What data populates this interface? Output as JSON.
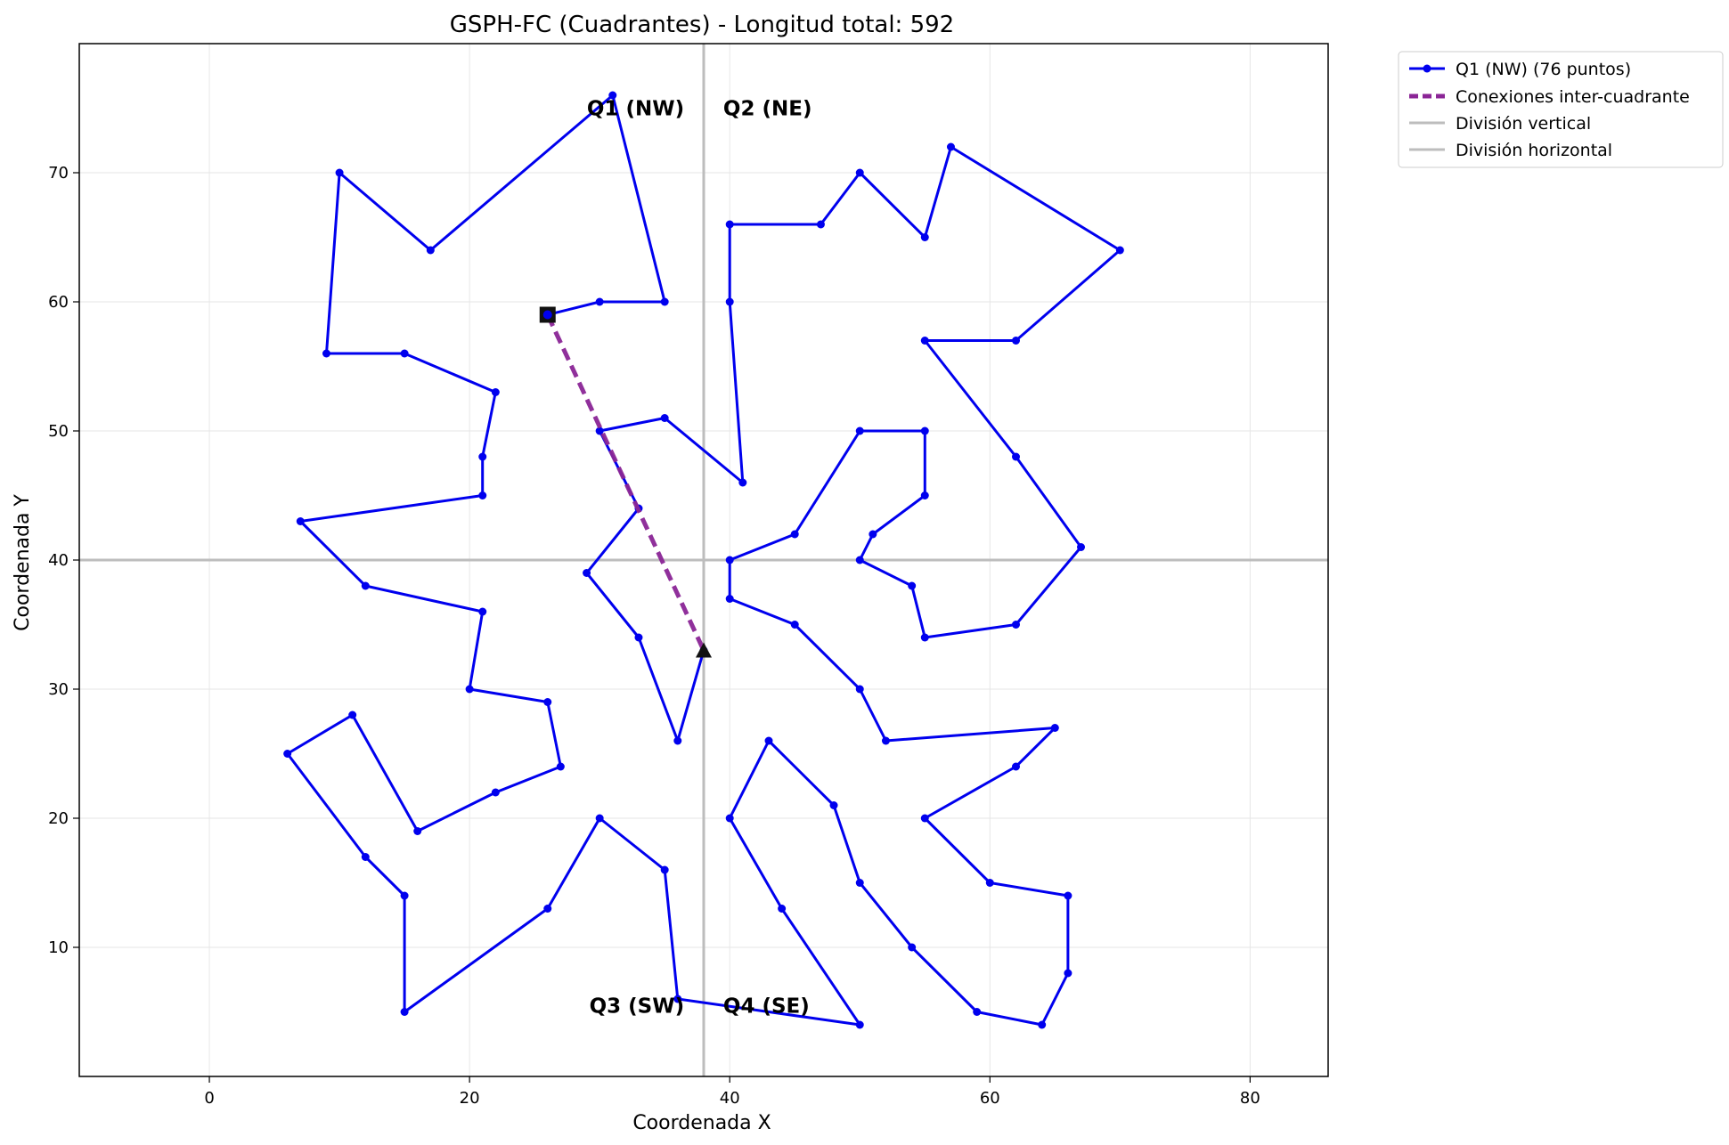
{
  "chart_data": {
    "type": "line",
    "title": "GSPH-FC (Cuadrantes) - Longitud total: 592",
    "xlabel": "Coordenada X",
    "ylabel": "Coordenada Y",
    "xlim": [
      -10,
      86
    ],
    "ylim": [
      0,
      80
    ],
    "xticks": [
      0,
      20,
      40,
      60,
      80
    ],
    "yticks": [
      10,
      20,
      30,
      40,
      50,
      60,
      70
    ],
    "grid": true,
    "legend_position": "outside-top-right",
    "colors": {
      "tour": "#0000ee",
      "connection": "#8b2596",
      "divider": "#bdbdbd"
    },
    "series": [
      {
        "name": "Q1 (NW) (76 puntos)",
        "points": [
          [
            26,
            59
          ],
          [
            30,
            60
          ],
          [
            35,
            60
          ],
          [
            31,
            76
          ],
          [
            17,
            64
          ],
          [
            10,
            70
          ],
          [
            9,
            56
          ],
          [
            15,
            56
          ],
          [
            22,
            53
          ],
          [
            21,
            48
          ],
          [
            21,
            45
          ],
          [
            7,
            43
          ],
          [
            12,
            38
          ],
          [
            21,
            36
          ],
          [
            20,
            30
          ],
          [
            26,
            29
          ],
          [
            27,
            24
          ],
          [
            22,
            22
          ],
          [
            16,
            19
          ],
          [
            11,
            28
          ],
          [
            6,
            25
          ],
          [
            12,
            17
          ],
          [
            15,
            14
          ],
          [
            15,
            5
          ],
          [
            26,
            13
          ],
          [
            30,
            20
          ],
          [
            35,
            16
          ],
          [
            36,
            6
          ],
          [
            50,
            4
          ],
          [
            44,
            13
          ],
          [
            40,
            20
          ],
          [
            43,
            26
          ],
          [
            48,
            21
          ],
          [
            50,
            15
          ],
          [
            54,
            10
          ],
          [
            59,
            5
          ],
          [
            64,
            4
          ],
          [
            66,
            8
          ],
          [
            66,
            14
          ],
          [
            60,
            15
          ],
          [
            55,
            20
          ],
          [
            62,
            24
          ],
          [
            65,
            27
          ],
          [
            52,
            26
          ],
          [
            50,
            30
          ],
          [
            45,
            35
          ],
          [
            40,
            37
          ],
          [
            40,
            40
          ],
          [
            45,
            42
          ],
          [
            50,
            50
          ],
          [
            55,
            50
          ],
          [
            55,
            45
          ],
          [
            51,
            42
          ],
          [
            50,
            40
          ],
          [
            54,
            38
          ],
          [
            55,
            34
          ],
          [
            62,
            35
          ],
          [
            67,
            41
          ],
          [
            62,
            48
          ],
          [
            55,
            57
          ],
          [
            62,
            57
          ],
          [
            70,
            64
          ],
          [
            57,
            72
          ],
          [
            55,
            65
          ],
          [
            50,
            70
          ],
          [
            47,
            66
          ],
          [
            40,
            66
          ],
          [
            40,
            60
          ],
          [
            41,
            46
          ],
          [
            35,
            51
          ],
          [
            30,
            50
          ],
          [
            33,
            44
          ],
          [
            29,
            39
          ],
          [
            33,
            34
          ],
          [
            36,
            26
          ],
          [
            38,
            33
          ]
        ]
      },
      {
        "name": "Conexiones inter-cuadrante",
        "points": [
          [
            26,
            59
          ],
          [
            38,
            33
          ]
        ]
      },
      {
        "name": "División vertical",
        "x": 38
      },
      {
        "name": "División horizontal",
        "y": 40
      }
    ],
    "markers": {
      "start": [
        26,
        59
      ],
      "end": [
        38,
        33
      ]
    },
    "quadrant_labels": [
      {
        "text": "Q1 (NW)",
        "x": 36.5,
        "y": 75
      },
      {
        "text": "Q2 (NE)",
        "x": 39.5,
        "y": 75
      },
      {
        "text": "Q3 (SW)",
        "x": 36.5,
        "y": 5.5
      },
      {
        "text": "Q4 (SE)",
        "x": 39.5,
        "y": 5.5
      }
    ]
  }
}
